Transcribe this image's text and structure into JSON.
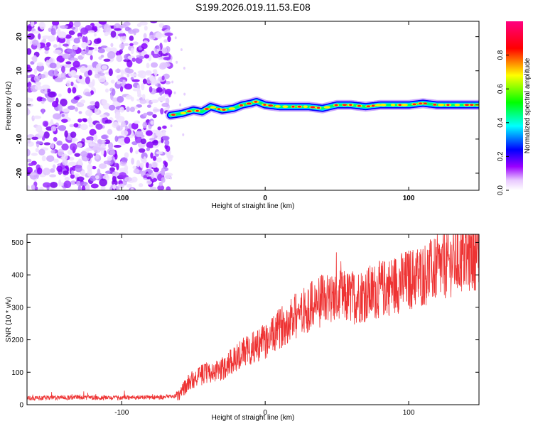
{
  "figure_title": "S199.2026.019.11.53.E08",
  "chart_data": [
    {
      "type": "heatmap",
      "title": "S199.2026.019.11.53.E08",
      "xlabel": "Height of straight line (km)",
      "ylabel": "Frequency (Hz)",
      "xlim": [
        -166,
        149
      ],
      "ylim": [
        -25,
        24.5
      ],
      "xticks": [
        -100,
        0,
        100
      ],
      "xtick_labels": [
        "-100",
        "0",
        "100"
      ],
      "yticks": [
        -20,
        -10,
        0,
        10,
        20
      ],
      "ytick_labels": [
        "-20",
        "-10",
        "0",
        "10",
        "20"
      ],
      "colorbar": {
        "label": "Normalized spectral amplitude",
        "range": [
          0.0,
          1.0
        ],
        "ticks": [
          0.0,
          0.2,
          0.4,
          0.6,
          0.8
        ],
        "tick_labels": [
          "0.0",
          "0.2",
          "0.4",
          "0.6",
          "0.8"
        ],
        "colors": [
          "#ffffff",
          "#9b00ff",
          "#0000ff",
          "#00ffff",
          "#00ff00",
          "#ffff00",
          "#ff0000",
          "#ff0080"
        ]
      },
      "noise_region_x": [
        -166,
        -66
      ],
      "signal_track": {
        "x": [
          -66,
          -58,
          -50,
          -44,
          -38,
          -30,
          -22,
          -16,
          -10,
          -6,
          0,
          10,
          20,
          30,
          40,
          50,
          60,
          70,
          80,
          90,
          100,
          110,
          120,
          130,
          140,
          149
        ],
        "y": [
          -3,
          -2.5,
          -1.5,
          -2,
          -0.5,
          -1.5,
          -1,
          0,
          0.5,
          1,
          0,
          -0.5,
          -0.5,
          -0.5,
          -1,
          0,
          0,
          -0.5,
          0,
          0,
          0,
          0.5,
          0,
          0,
          0,
          0
        ]
      }
    },
    {
      "type": "line",
      "xlabel": "Height of straight line (km)",
      "ylabel": "SNR (10 * v/v)",
      "xlim": [
        -166,
        149
      ],
      "ylim": [
        0,
        525
      ],
      "xticks": [
        -100,
        0,
        100
      ],
      "xtick_labels": [
        "-100",
        "0",
        "100"
      ],
      "yticks": [
        0,
        100,
        200,
        300,
        400,
        500
      ],
      "ytick_labels": [
        "0",
        "100",
        "200",
        "300",
        "400",
        "500"
      ],
      "series": [
        {
          "name": "SNR",
          "color": "#ee3333",
          "x": [
            -166,
            -150,
            -130,
            -110,
            -90,
            -70,
            -60,
            -55,
            -50,
            -45,
            -40,
            -35,
            -30,
            -25,
            -20,
            -15,
            -10,
            -5,
            0,
            5,
            10,
            15,
            20,
            25,
            30,
            40,
            50,
            60,
            70,
            80,
            90,
            100,
            110,
            120,
            130,
            140,
            149
          ],
          "values": [
            20,
            21,
            22,
            21,
            22,
            23,
            28,
            60,
            80,
            90,
            100,
            100,
            110,
            130,
            145,
            160,
            170,
            185,
            195,
            210,
            235,
            255,
            270,
            285,
            300,
            320,
            330,
            330,
            340,
            355,
            370,
            385,
            400,
            420,
            440,
            455,
            470
          ]
        }
      ]
    }
  ]
}
